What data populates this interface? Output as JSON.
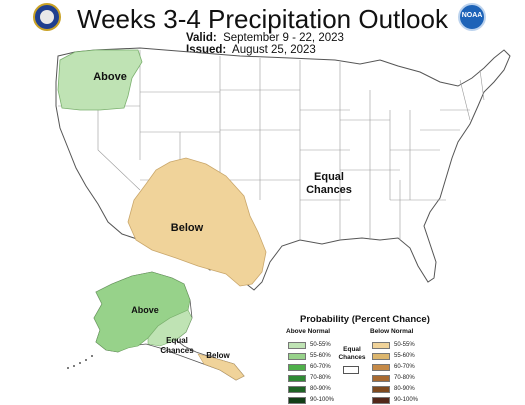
{
  "header": {
    "title": "Weeks 3-4 Precipitation Outlook",
    "valid_label": "Valid:",
    "valid_value": "September 9 - 22, 2023",
    "issued_label": "Issued:",
    "issued_value": "August 25, 2023",
    "left_logo": "doc-seal-icon",
    "right_logo": "noaa-logo-icon",
    "right_logo_text": "NOAA"
  },
  "map": {
    "regions": [
      {
        "label": "Above",
        "category": "Above Normal",
        "probability": "50-55%",
        "area": "Pacific Northwest"
      },
      {
        "label": "Below",
        "category": "Below Normal",
        "probability": "50-55%",
        "area": "Southwest / Four Corners / West Texas"
      },
      {
        "label_line1": "Equal",
        "label_line2": "Chances",
        "category": "Equal Chances",
        "area": "Rest of CONUS"
      },
      {
        "label": "Above",
        "category": "Above Normal",
        "probability": "50-55%",
        "area": "Western Alaska"
      },
      {
        "label_line1": "Equal",
        "label_line2": "Chances",
        "category": "Equal Chances",
        "area": "Southern Alaska"
      },
      {
        "label": "Below",
        "category": "Below Normal",
        "probability": "50-55%",
        "area": "Alaska Panhandle"
      }
    ]
  },
  "legend": {
    "title": "Probability (Percent Chance)",
    "above_header": "Above Normal",
    "below_header": "Below Normal",
    "equal_line1": "Equal",
    "equal_line2": "Chances",
    "above": [
      {
        "range": "50-55%",
        "color": "#bfe3b4"
      },
      {
        "range": "55-60%",
        "color": "#97d28a"
      },
      {
        "range": "60-70%",
        "color": "#4fb04a"
      },
      {
        "range": "70-80%",
        "color": "#2f8a33"
      },
      {
        "range": "80-90%",
        "color": "#1e6324"
      },
      {
        "range": "90-100%",
        "color": "#123e17"
      }
    ],
    "below": [
      {
        "range": "50-55%",
        "color": "#f0d39a"
      },
      {
        "range": "55-60%",
        "color": "#dcb66e"
      },
      {
        "range": "60-70%",
        "color": "#c58a48"
      },
      {
        "range": "70-80%",
        "color": "#a86a31"
      },
      {
        "range": "80-90%",
        "color": "#7f4a1f"
      },
      {
        "range": "90-100%",
        "color": "#52281a"
      }
    ]
  },
  "colors": {
    "above_fill": "#bfe3b4",
    "below_fill": "#f0d39a",
    "state_line": "#9a9a9a",
    "outline": "#555555"
  }
}
